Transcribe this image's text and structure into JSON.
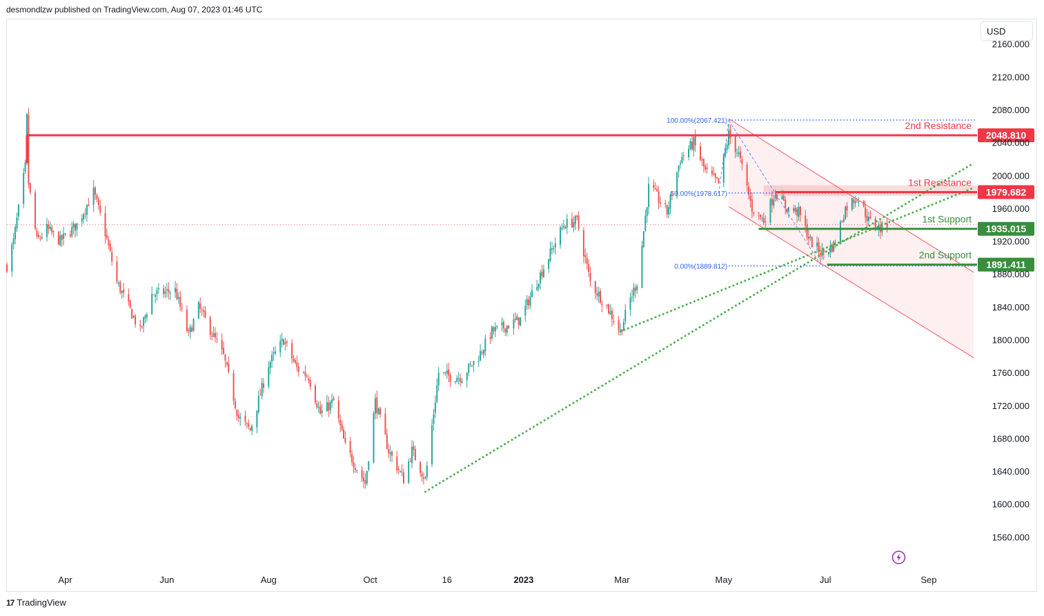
{
  "header": {
    "attribution": "desmondlzw published on TradingView.com, Aug 07, 2023 01:46 UTC"
  },
  "currency": "USD",
  "footer": {
    "brand": "TradingView",
    "logo_glyph": "17"
  },
  "colors": {
    "up": "#26a69a",
    "down": "#ef5350",
    "resistance": "#f23645",
    "support": "#388e3c",
    "fib": "#2962ff",
    "trend": "#4caf50",
    "channel": "#f7525f",
    "bolt": "#9c27b0"
  },
  "chart_data": {
    "type": "candlestick",
    "symbol_scale": "price",
    "ylim": [
      1520,
      2190
    ],
    "y_ticks": [
      2160,
      2120,
      2080,
      2040,
      2000,
      1960,
      1920,
      1880,
      1840,
      1800,
      1760,
      1720,
      1680,
      1640,
      1600,
      1560
    ],
    "y_tick_labels": [
      "2160.000",
      "2120.000",
      "2080.000",
      "2040.000",
      "2000.000",
      "1960.000",
      "1920.000",
      "1880.000",
      "1840.000",
      "1800.000",
      "1760.000",
      "1720.000",
      "1680.000",
      "1640.000",
      "1600.000",
      "1560.000"
    ],
    "x_range": [
      "2022-02-25",
      "2023-09-30"
    ],
    "x_ticks": [
      {
        "date": "2022-04-01",
        "label": "Apr",
        "bold": false
      },
      {
        "date": "2022-06-01",
        "label": "Jun",
        "bold": false
      },
      {
        "date": "2022-08-01",
        "label": "Aug",
        "bold": false
      },
      {
        "date": "2022-10-01",
        "label": "Oct",
        "bold": false
      },
      {
        "date": "2022-11-16",
        "label": "16",
        "bold": false
      },
      {
        "date": "2023-01-01",
        "label": "2023",
        "bold": true
      },
      {
        "date": "2023-03-01",
        "label": "Mar",
        "bold": false
      },
      {
        "date": "2023-05-01",
        "label": "May",
        "bold": false
      },
      {
        "date": "2023-07-01",
        "label": "Jul",
        "bold": false
      },
      {
        "date": "2023-09-01",
        "label": "Sep",
        "bold": false
      }
    ],
    "price_path": [
      [
        "2022-02-25",
        1890
      ],
      [
        "2022-03-01",
        1920
      ],
      [
        "2022-03-08",
        2010
      ],
      [
        "2022-03-09",
        2070
      ],
      [
        "2022-03-10",
        1990
      ],
      [
        "2022-03-15",
        1920
      ],
      [
        "2022-03-21",
        1935
      ],
      [
        "2022-03-29",
        1920
      ],
      [
        "2022-04-08",
        1940
      ],
      [
        "2022-04-18",
        1980
      ],
      [
        "2022-04-25",
        1930
      ],
      [
        "2022-05-02",
        1870
      ],
      [
        "2022-05-16",
        1810
      ],
      [
        "2022-05-23",
        1855
      ],
      [
        "2022-06-06",
        1860
      ],
      [
        "2022-06-14",
        1805
      ],
      [
        "2022-06-20",
        1840
      ],
      [
        "2022-07-05",
        1780
      ],
      [
        "2022-07-14",
        1705
      ],
      [
        "2022-07-21",
        1690
      ],
      [
        "2022-08-01",
        1770
      ],
      [
        "2022-08-10",
        1800
      ],
      [
        "2022-08-18",
        1765
      ],
      [
        "2022-08-25",
        1755
      ],
      [
        "2022-09-01",
        1710
      ],
      [
        "2022-09-09",
        1725
      ],
      [
        "2022-09-16",
        1670
      ],
      [
        "2022-09-28",
        1625
      ],
      [
        "2022-10-04",
        1725
      ],
      [
        "2022-10-12",
        1665
      ],
      [
        "2022-10-21",
        1630
      ],
      [
        "2022-10-26",
        1665
      ],
      [
        "2022-11-03",
        1630
      ],
      [
        "2022-11-11",
        1760
      ],
      [
        "2022-11-18",
        1755
      ],
      [
        "2022-11-25",
        1755
      ],
      [
        "2022-12-05",
        1780
      ],
      [
        "2022-12-13",
        1810
      ],
      [
        "2022-12-20",
        1815
      ],
      [
        "2022-12-30",
        1825
      ],
      [
        "2023-01-10",
        1875
      ],
      [
        "2023-01-25",
        1940
      ],
      [
        "2023-02-02",
        1945
      ],
      [
        "2023-02-10",
        1870
      ],
      [
        "2023-02-20",
        1840
      ],
      [
        "2023-02-28",
        1810
      ],
      [
        "2023-03-06",
        1850
      ],
      [
        "2023-03-10",
        1870
      ],
      [
        "2023-03-13",
        1915
      ],
      [
        "2023-03-17",
        1985
      ],
      [
        "2023-03-20",
        1980
      ],
      [
        "2023-03-28",
        1955
      ],
      [
        "2023-04-05",
        2020
      ],
      [
        "2023-04-13",
        2040
      ],
      [
        "2023-04-20",
        2005
      ],
      [
        "2023-04-28",
        1990
      ],
      [
        "2023-05-04",
        2050
      ],
      [
        "2023-05-10",
        2025
      ],
      [
        "2023-05-18",
        1960
      ],
      [
        "2023-05-25",
        1945
      ],
      [
        "2023-06-01",
        1980
      ],
      [
        "2023-06-08",
        1960
      ],
      [
        "2023-06-15",
        1955
      ],
      [
        "2023-06-22",
        1920
      ],
      [
        "2023-06-29",
        1905
      ],
      [
        "2023-07-06",
        1915
      ],
      [
        "2023-07-13",
        1960
      ],
      [
        "2023-07-20",
        1975
      ],
      [
        "2023-07-27",
        1945
      ],
      [
        "2023-08-03",
        1935
      ],
      [
        "2023-08-07",
        1940
      ]
    ],
    "current_price_line": 1940,
    "levels": [
      {
        "label": "2nd Resistance",
        "value": 2048.81,
        "value_label": "2048.810",
        "kind": "resistance",
        "start": "2022-03-09"
      },
      {
        "label": "1st Resistance",
        "value": 1979.682,
        "value_label": "1979.682",
        "kind": "resistance",
        "start": "2023-06-01"
      },
      {
        "label": "1st Support",
        "value": 1935.015,
        "value_label": "1935.015",
        "kind": "support",
        "start": "2023-05-22"
      },
      {
        "label": "2nd Support",
        "value": 1891.411,
        "value_label": "1891.411",
        "kind": "support",
        "start": "2023-07-02"
      }
    ],
    "resistance_zone": {
      "start": "2023-05-25",
      "low": 1975,
      "high": 1988
    },
    "fibonacci": {
      "start": "2023-05-04",
      "end": "2023-08-07",
      "levels": [
        {
          "value": 2067.421,
          "label": "100.00%(2067.421)"
        },
        {
          "value": 1978.617,
          "label": "50.00%(1978.617)"
        },
        {
          "value": 1889.812,
          "label": "0.00%(1889.812)"
        }
      ]
    },
    "channel": {
      "start": "2023-05-04",
      "end": "2023-09-28",
      "upper": [
        2069,
        1882
      ],
      "lower": [
        1962,
        1778
      ]
    },
    "trendlines": [
      {
        "from": [
          "2022-11-03",
          1615
        ],
        "to": [
          "2023-09-28",
          2015
        ]
      },
      {
        "from": [
          "2023-02-28",
          1810
        ],
        "to": [
          "2023-09-28",
          1985
        ]
      }
    ],
    "fib_connectors": [
      {
        "from": [
          "2023-05-04",
          2067
        ],
        "to": [
          "2023-06-29",
          1889
        ]
      },
      {
        "from": [
          "2023-04-28",
          1978
        ],
        "to": [
          "2023-05-04",
          2067
        ]
      }
    ],
    "marker": {
      "date": "2023-08-14",
      "value": 1535,
      "icon": "lightning-bolt-icon"
    }
  }
}
